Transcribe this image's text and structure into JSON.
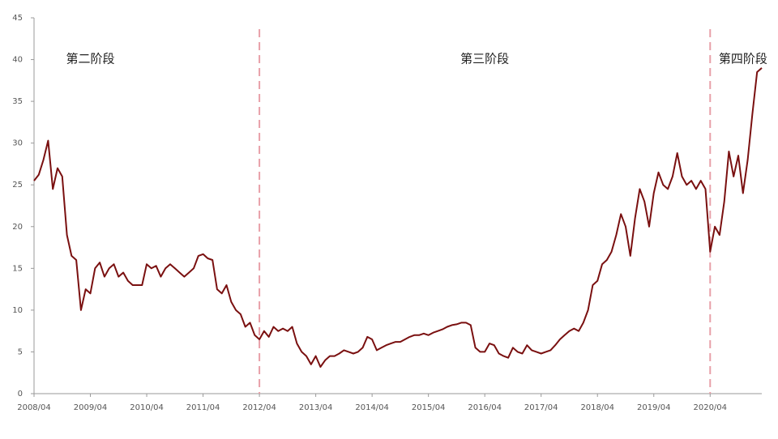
{
  "chart_data": {
    "type": "line",
    "annotations": [
      {
        "text": "第二阶段",
        "at": "2009/04"
      },
      {
        "text": "第三阶段",
        "at": "2016/04"
      },
      {
        "text": "第四阶段",
        "at": "2020/11"
      }
    ],
    "dividers": [
      "2012/04",
      "2020/04"
    ],
    "x": [
      "2008/04",
      "2008/05",
      "2008/06",
      "2008/07",
      "2008/08",
      "2008/09",
      "2008/10",
      "2008/11",
      "2008/12",
      "2009/01",
      "2009/02",
      "2009/03",
      "2009/04",
      "2009/05",
      "2009/06",
      "2009/07",
      "2009/08",
      "2009/09",
      "2009/10",
      "2009/11",
      "2009/12",
      "2010/01",
      "2010/02",
      "2010/03",
      "2010/04",
      "2010/05",
      "2010/06",
      "2010/07",
      "2010/08",
      "2010/09",
      "2010/10",
      "2010/11",
      "2010/12",
      "2011/01",
      "2011/02",
      "2011/03",
      "2011/04",
      "2011/05",
      "2011/06",
      "2011/07",
      "2011/08",
      "2011/09",
      "2011/10",
      "2011/11",
      "2011/12",
      "2012/01",
      "2012/02",
      "2012/03",
      "2012/04",
      "2012/05",
      "2012/06",
      "2012/07",
      "2012/08",
      "2012/09",
      "2012/10",
      "2012/11",
      "2012/12",
      "2013/01",
      "2013/02",
      "2013/03",
      "2013/04",
      "2013/05",
      "2013/06",
      "2013/07",
      "2013/08",
      "2013/09",
      "2013/10",
      "2013/11",
      "2013/12",
      "2014/01",
      "2014/02",
      "2014/03",
      "2014/04",
      "2014/05",
      "2014/06",
      "2014/07",
      "2014/08",
      "2014/09",
      "2014/10",
      "2014/11",
      "2014/12",
      "2015/01",
      "2015/02",
      "2015/03",
      "2015/04",
      "2015/05",
      "2015/06",
      "2015/07",
      "2015/08",
      "2015/09",
      "2015/10",
      "2015/11",
      "2015/12",
      "2016/01",
      "2016/02",
      "2016/03",
      "2016/04",
      "2016/05",
      "2016/06",
      "2016/07",
      "2016/08",
      "2016/09",
      "2016/10",
      "2016/11",
      "2016/12",
      "2017/01",
      "2017/02",
      "2017/03",
      "2017/04",
      "2017/05",
      "2017/06",
      "2017/07",
      "2017/08",
      "2017/09",
      "2017/10",
      "2017/11",
      "2017/12",
      "2018/01",
      "2018/02",
      "2018/03",
      "2018/04",
      "2018/05",
      "2018/06",
      "2018/07",
      "2018/08",
      "2018/09",
      "2018/10",
      "2018/11",
      "2018/12",
      "2019/01",
      "2019/02",
      "2019/03",
      "2019/04",
      "2019/05",
      "2019/06",
      "2019/07",
      "2019/08",
      "2019/09",
      "2019/10",
      "2019/11",
      "2019/12",
      "2020/01",
      "2020/02",
      "2020/03",
      "2020/04",
      "2020/05",
      "2020/06",
      "2020/07",
      "2020/08",
      "2020/09",
      "2020/10",
      "2020/11",
      "2020/12",
      "2021/01",
      "2021/02",
      "2021/03"
    ],
    "series": [
      {
        "name": "series",
        "color": "#7a1010",
        "values": [
          25.5,
          26.2,
          28,
          30.3,
          24.5,
          27,
          26,
          19,
          16.5,
          16,
          10,
          12.5,
          12,
          15,
          15.7,
          14,
          15,
          15.5,
          14,
          14.5,
          13.5,
          13,
          13,
          13,
          15.5,
          15,
          15.3,
          14,
          15,
          15.5,
          15,
          14.5,
          14,
          14.5,
          15,
          16.5,
          16.7,
          16.2,
          16,
          12.5,
          12,
          13,
          11,
          10,
          9.5,
          8,
          8.5,
          7,
          6.5,
          7.5,
          6.8,
          8,
          7.5,
          7.8,
          7.5,
          8,
          6,
          5,
          4.5,
          3.5,
          4.5,
          3.2,
          4,
          4.5,
          4.5,
          4.8,
          5.2,
          5,
          4.8,
          5,
          5.5,
          6.8,
          6.5,
          5.2,
          5.5,
          5.8,
          6,
          6.2,
          6.2,
          6.5,
          6.8,
          7,
          7,
          7.2,
          7,
          7.3,
          7.5,
          7.7,
          8,
          8.2,
          8.3,
          8.5,
          8.5,
          8.2,
          5.5,
          5,
          5,
          6,
          5.8,
          4.8,
          4.5,
          4.3,
          5.5,
          5,
          4.8,
          5.8,
          5.2,
          5,
          4.8,
          5,
          5.2,
          5.8,
          6.5,
          7,
          7.5,
          7.8,
          7.5,
          8.5,
          10,
          13,
          13.5,
          15.5,
          16,
          17,
          19,
          21.5,
          20,
          16.5,
          21,
          24.5,
          23,
          20,
          24,
          26.5,
          25,
          24.5,
          26,
          28.8,
          26,
          25,
          25.5,
          24.5,
          25.5,
          24.5,
          17,
          20,
          19,
          23,
          29,
          26,
          28.5,
          24,
          28,
          33.5,
          38.5,
          39
        ]
      }
    ],
    "xticks": [
      "2008/04",
      "2009/04",
      "2010/04",
      "2011/04",
      "2012/04",
      "2013/04",
      "2014/04",
      "2015/04",
      "2016/04",
      "2017/04",
      "2018/04",
      "2019/04",
      "2020/04"
    ],
    "ylim": [
      0,
      45
    ],
    "yticks": [
      0,
      5,
      10,
      15,
      20,
      25,
      30,
      35,
      40,
      45
    ],
    "divider_color": "#e8a0a8"
  }
}
